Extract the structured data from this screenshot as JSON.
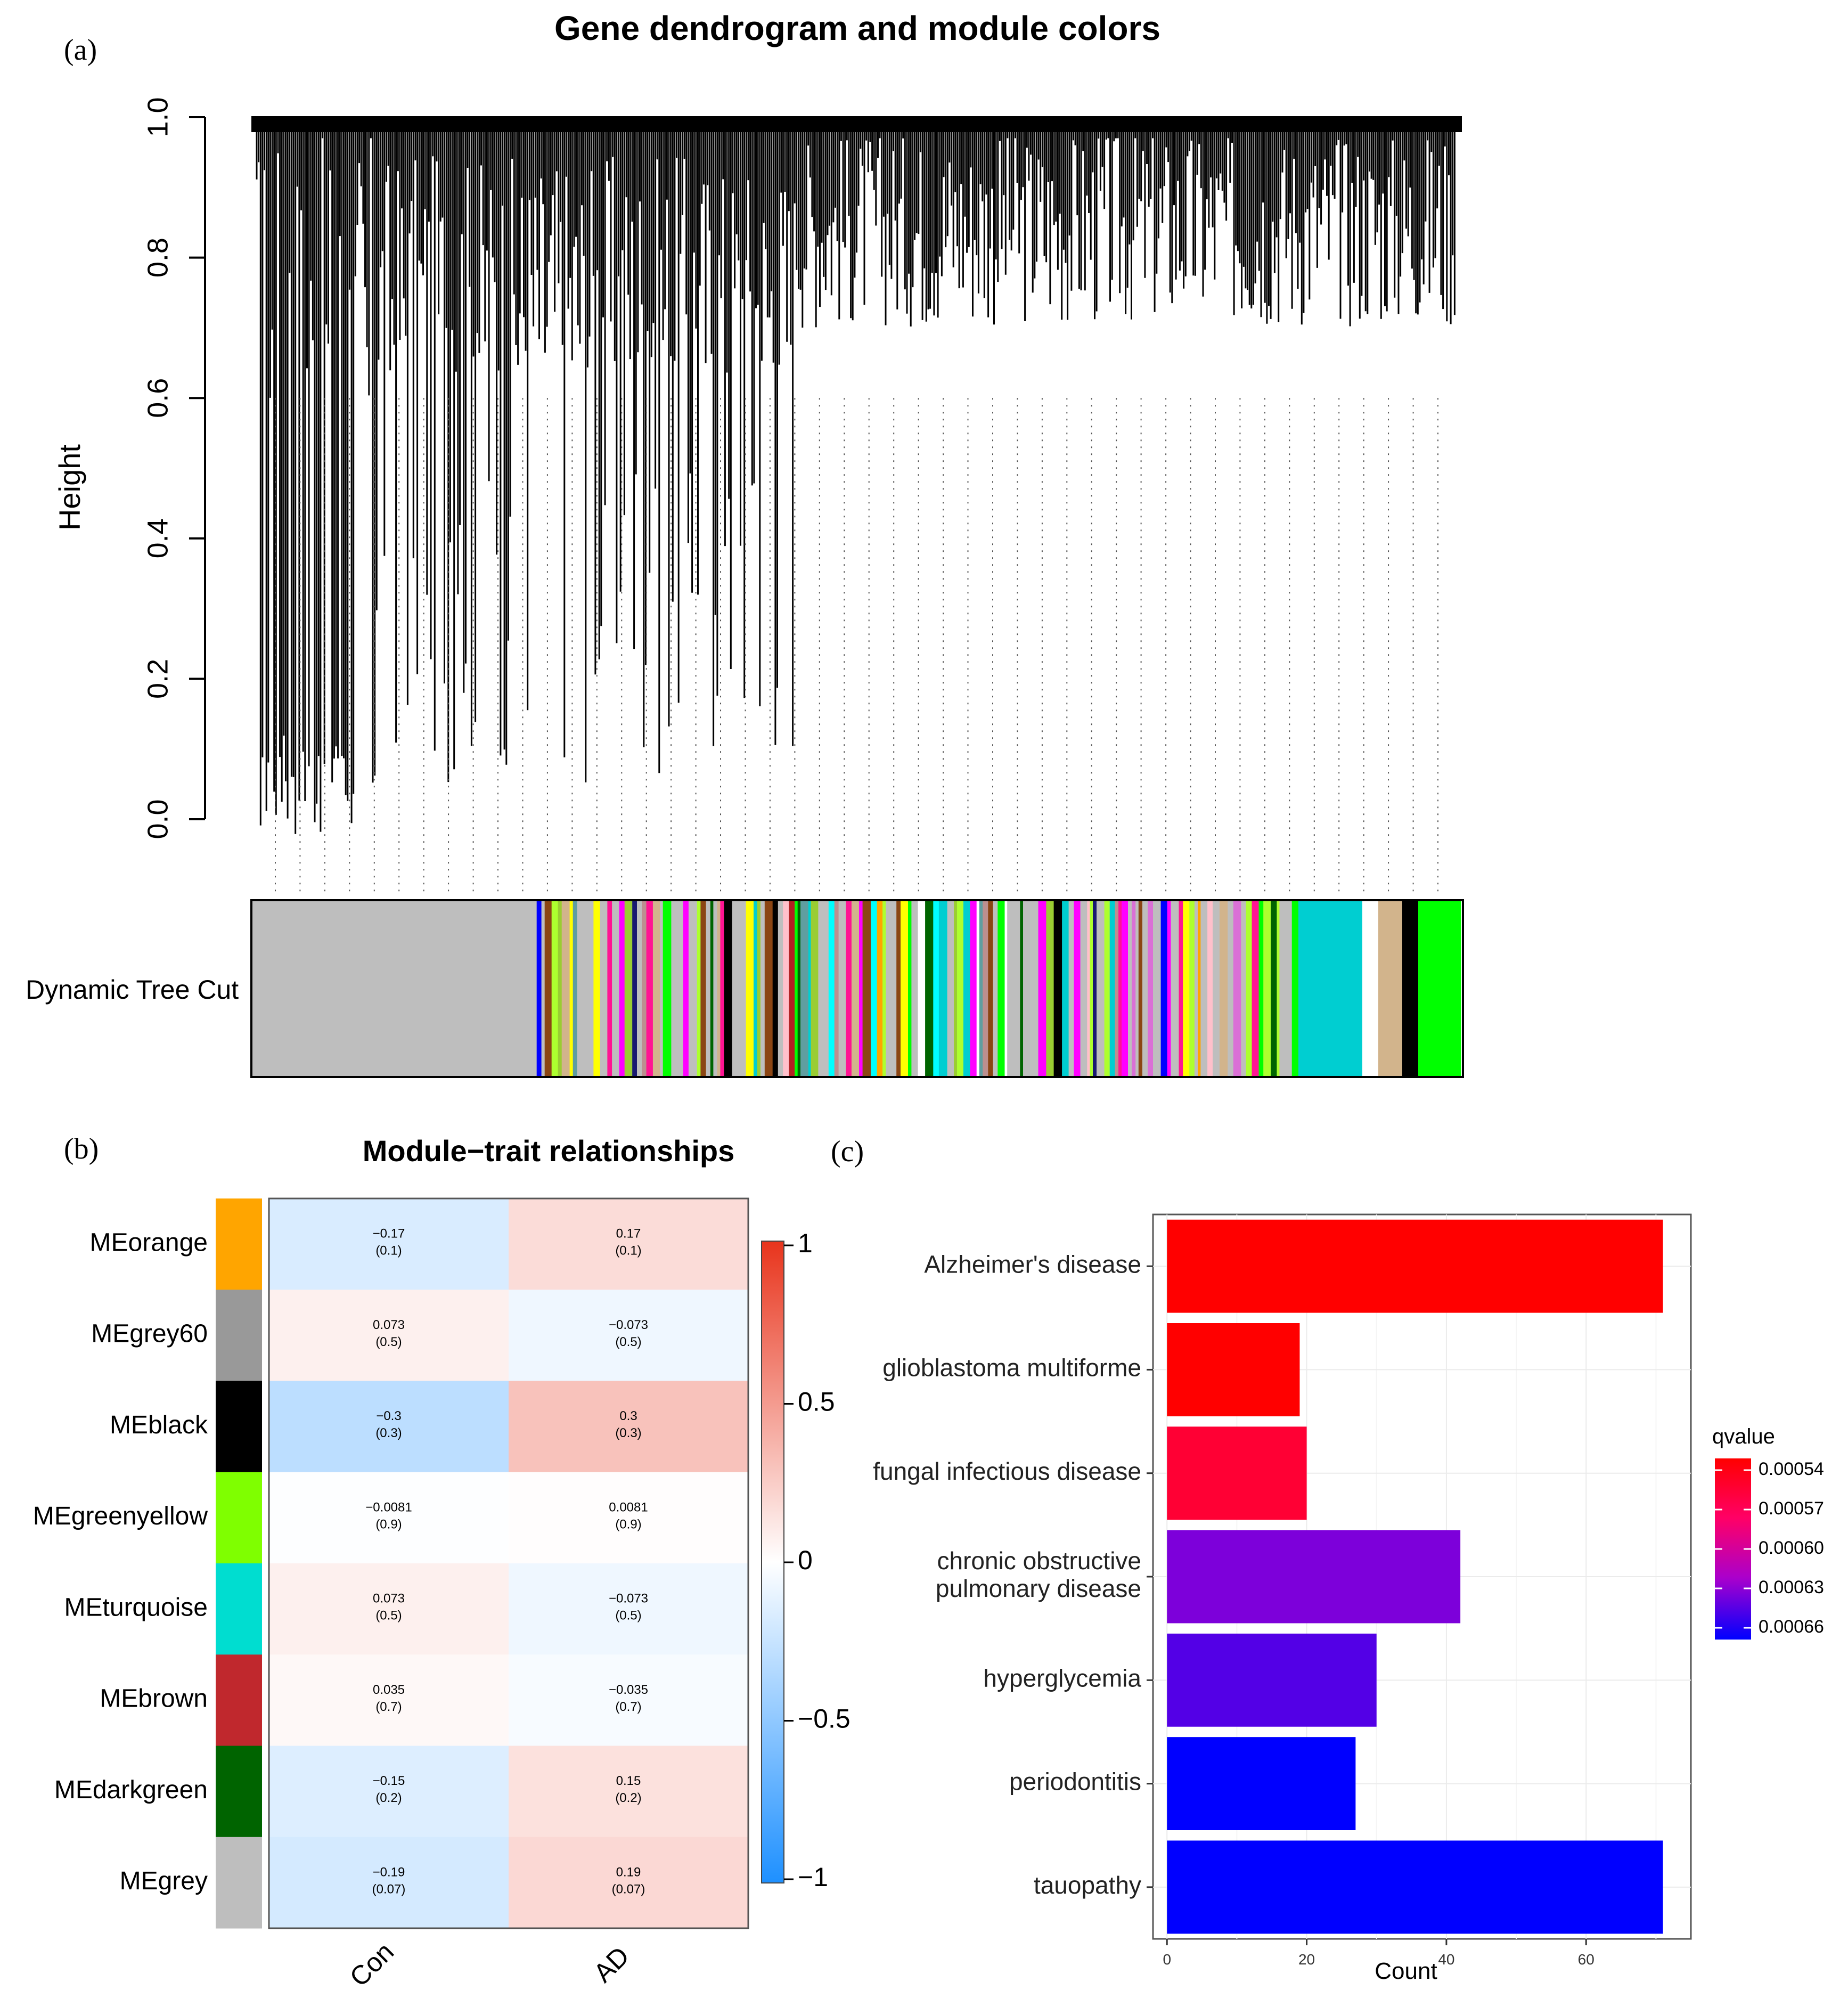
{
  "panel_labels": {
    "a": "(a)",
    "b": "(b)",
    "c": "(c)"
  },
  "chart_data": [
    {
      "type": "dendrogram",
      "title": "Gene dendrogram and module colors",
      "ylabel": "Height",
      "ylim": [
        0.0,
        1.0
      ],
      "yticks": [
        "0.0",
        "0.2",
        "0.4",
        "0.6",
        "0.8",
        "1.0"
      ],
      "color_bar_label": "Dynamic Tree Cut",
      "module_colors": [
        "#bebebe",
        "#ffa500",
        "#9acd32",
        "#bc8f8f",
        "#da70d6",
        "#006400",
        "#ff00ff",
        "#a020f0",
        "#00ced1",
        "#191970",
        "#00ffff",
        "#ff1493",
        "#8b4513",
        "#0000ff",
        "#b22222",
        "#ffc0cb",
        "#ffff00",
        "#5f9ea0",
        "#adff2f",
        "#ff00ff",
        "#00ced1",
        "#ffffff",
        "#d2b48c",
        "#000000",
        "#00ff00"
      ]
    },
    {
      "type": "heatmap",
      "title": "Module−trait relationships",
      "rows": [
        "MEorange",
        "MEgrey60",
        "MEblack",
        "MEgreenyellow",
        "MEturquoise",
        "MEbrown",
        "MEdarkgreen",
        "MEgrey"
      ],
      "row_colors": [
        "#ffa500",
        "#999999",
        "#000000",
        "#7fff00",
        "#00ddd0",
        "#c0282d",
        "#006400",
        "#bebebe"
      ],
      "columns": [
        "Con",
        "AD"
      ],
      "correlations": [
        [
          -0.17,
          0.17
        ],
        [
          0.073,
          -0.073
        ],
        [
          -0.3,
          0.3
        ],
        [
          -0.0081,
          0.0081
        ],
        [
          0.073,
          -0.073
        ],
        [
          0.035,
          -0.035
        ],
        [
          -0.15,
          0.15
        ],
        [
          -0.19,
          0.19
        ]
      ],
      "cell_text": [
        [
          [
            "−0.17",
            "(0.1)"
          ],
          [
            "0.17",
            "(0.1)"
          ]
        ],
        [
          [
            "0.073",
            "(0.5)"
          ],
          [
            "−0.073",
            "(0.5)"
          ]
        ],
        [
          [
            "−0.3",
            "(0.3)"
          ],
          [
            "0.3",
            "(0.3)"
          ]
        ],
        [
          [
            "−0.0081",
            "(0.9)"
          ],
          [
            "0.0081",
            "(0.9)"
          ]
        ],
        [
          [
            "0.073",
            "(0.5)"
          ],
          [
            "−0.073",
            "(0.5)"
          ]
        ],
        [
          [
            "0.035",
            "(0.7)"
          ],
          [
            "−0.035",
            "(0.7)"
          ]
        ],
        [
          [
            "−0.15",
            "(0.2)"
          ],
          [
            "0.15",
            "(0.2)"
          ]
        ],
        [
          [
            "−0.19",
            "(0.07)"
          ],
          [
            "0.19",
            "(0.07)"
          ]
        ]
      ],
      "colorbar": {
        "range": [
          -1,
          1
        ],
        "ticks": [
          "1",
          "0.5",
          "0",
          "−0.5",
          "−1"
        ],
        "low": "#1e90ff",
        "mid": "#ffffff",
        "high": "#e8341c"
      }
    },
    {
      "type": "bar",
      "orientation": "horizontal",
      "categories": [
        "Alzheimer's disease",
        "glioblastoma multiforme",
        "fungal infectious disease",
        "chronic obstructive pulmonary disease",
        "hyperglycemia",
        "periodontitis",
        "tauopathy"
      ],
      "category_lines": [
        [
          "Alzheimer's disease"
        ],
        [
          "glioblastoma multiforme"
        ],
        [
          "fungal infectious disease"
        ],
        [
          "chronic obstructive",
          "pulmonary disease"
        ],
        [
          "hyperglycemia"
        ],
        [
          "periodontitis"
        ],
        [
          "tauopathy"
        ]
      ],
      "values": [
        71,
        19,
        20,
        42,
        30,
        27,
        71
      ],
      "qvalues": [
        0.00054,
        0.00054,
        0.00056,
        0.00063,
        0.00064,
        0.00066,
        0.00066
      ],
      "xlabel": "Count",
      "xlim": [
        -2,
        75
      ],
      "xticks": [
        "0",
        "20",
        "40",
        "60"
      ],
      "legend": {
        "title": "qvalue",
        "labels": [
          "0.00054",
          "0.00057",
          "0.00060",
          "0.00063",
          "0.00066"
        ],
        "range": [
          0.00054,
          0.00066
        ],
        "low_color": "#ff0000",
        "high_color": "#0000ff"
      }
    }
  ]
}
